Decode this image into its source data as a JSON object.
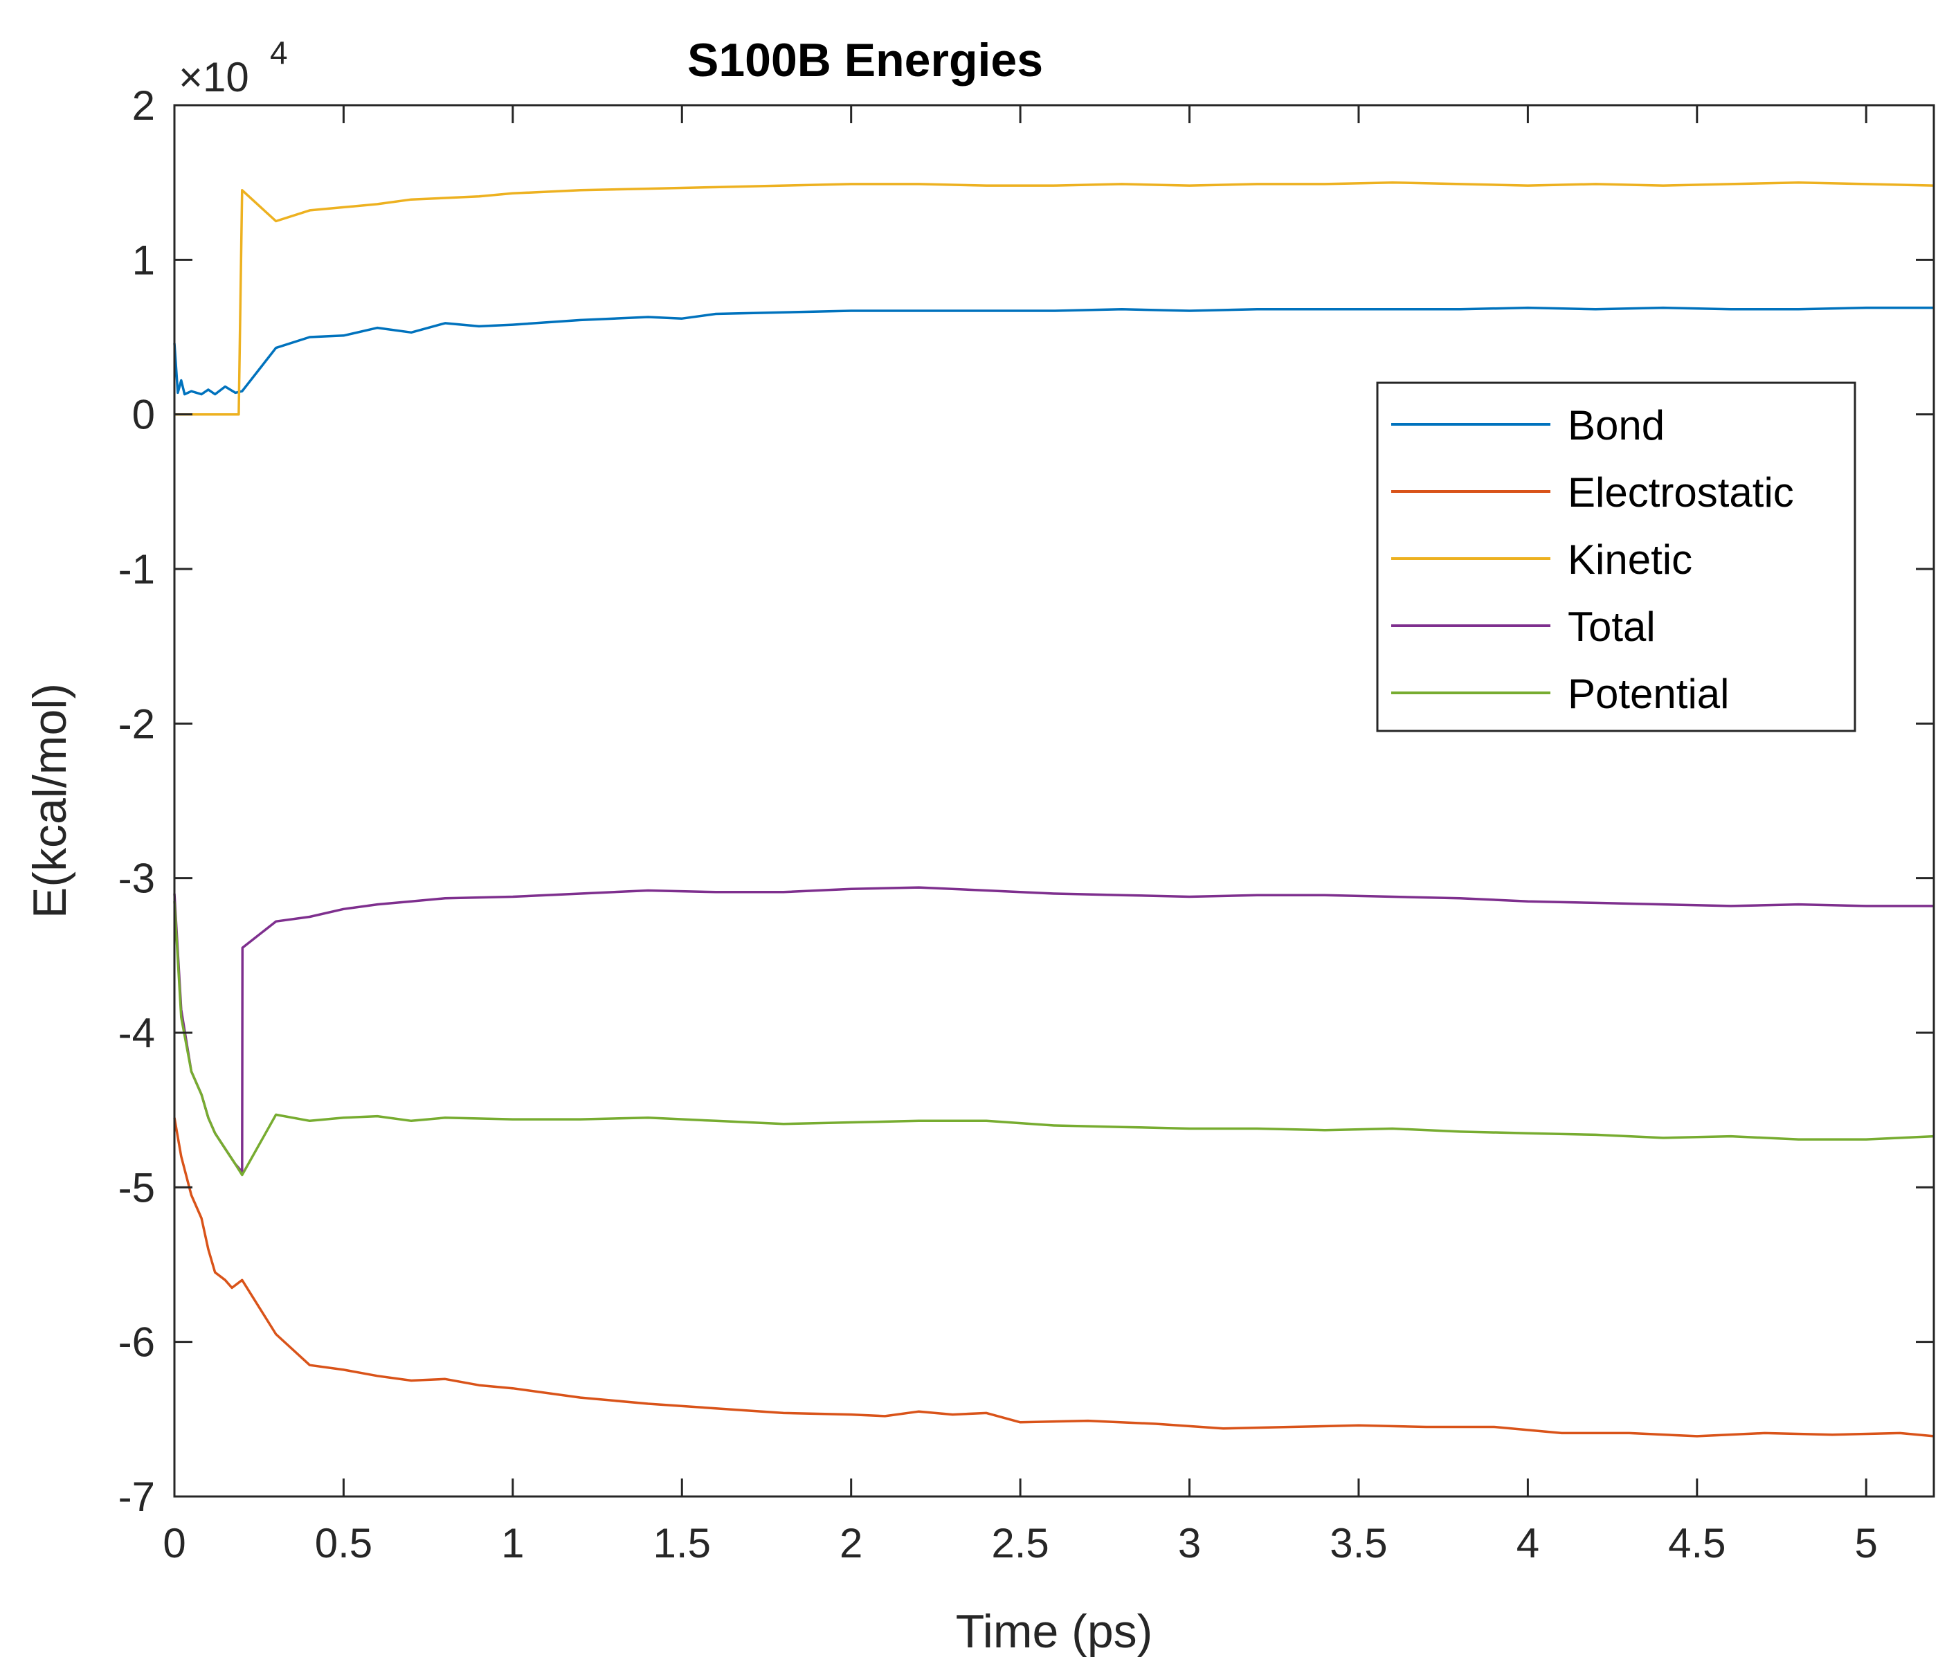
{
  "chart_data": {
    "type": "line",
    "title": "S100B Energies",
    "xlabel": "Time (ps)",
    "ylabel": "E(kcal/mol)",
    "y_multiplier": "×10",
    "y_multiplier_exp": "4",
    "xlim": [
      0,
      5.2
    ],
    "ylim": [
      -7,
      2
    ],
    "xticks": [
      0,
      0.5,
      1,
      1.5,
      2,
      2.5,
      3,
      3.5,
      4,
      4.5,
      5
    ],
    "xtick_labels": [
      "0",
      "0.5",
      "1",
      "1.5",
      "2",
      "2.5",
      "3",
      "3.5",
      "4",
      "4.5",
      "5"
    ],
    "yticks": [
      2,
      1,
      0,
      -1,
      -2,
      -3,
      -4,
      -5,
      -6,
      -7
    ],
    "ytick_labels": [
      "2",
      "1",
      "0",
      "-1",
      "-2",
      "-3",
      "-4",
      "-5",
      "-6",
      "-7"
    ],
    "legend_position": "upper-right",
    "series": [
      {
        "name": "Bond",
        "color": "#0072BD",
        "x": [
          0,
          0.01,
          0.02,
          0.03,
          0.05,
          0.08,
          0.1,
          0.12,
          0.15,
          0.18,
          0.2,
          0.3,
          0.4,
          0.5,
          0.6,
          0.7,
          0.8,
          0.9,
          1.0,
          1.2,
          1.4,
          1.5,
          1.6,
          1.8,
          2.0,
          2.2,
          2.4,
          2.6,
          2.8,
          3.0,
          3.2,
          3.4,
          3.6,
          3.8,
          4.0,
          4.2,
          4.4,
          4.6,
          4.8,
          5.0,
          5.2
        ],
        "values": [
          4600,
          1400,
          2200,
          1300,
          1500,
          1300,
          1600,
          1300,
          1800,
          1400,
          1500,
          4300,
          5000,
          5100,
          5600,
          5300,
          5900,
          5700,
          5800,
          6100,
          6300,
          6200,
          6500,
          6600,
          6700,
          6700,
          6700,
          6700,
          6800,
          6700,
          6800,
          6800,
          6800,
          6800,
          6900,
          6800,
          6900,
          6800,
          6800,
          6900,
          6900
        ]
      },
      {
        "name": "Electrostatic",
        "color": "#D95319",
        "x": [
          0,
          0.02,
          0.05,
          0.08,
          0.1,
          0.12,
          0.15,
          0.17,
          0.2,
          0.3,
          0.4,
          0.5,
          0.6,
          0.7,
          0.8,
          0.9,
          1.0,
          1.2,
          1.4,
          1.6,
          1.8,
          2.0,
          2.1,
          2.2,
          2.3,
          2.4,
          2.5,
          2.7,
          2.9,
          3.1,
          3.3,
          3.5,
          3.7,
          3.9,
          4.1,
          4.3,
          4.5,
          4.7,
          4.9,
          5.1,
          5.2
        ],
        "values": [
          -45500,
          -48000,
          -50500,
          -52000,
          -54000,
          -55500,
          -56000,
          -56500,
          -56000,
          -59500,
          -61500,
          -61800,
          -62200,
          -62500,
          -62400,
          -62800,
          -63000,
          -63600,
          -64000,
          -64300,
          -64600,
          -64700,
          -64800,
          -64500,
          -64700,
          -64600,
          -65200,
          -65100,
          -65300,
          -65600,
          -65500,
          -65400,
          -65500,
          -65500,
          -65900,
          -65900,
          -66100,
          -65900,
          -66000,
          -65900,
          -66100
        ]
      },
      {
        "name": "Kinetic",
        "color": "#EDB120",
        "x": [
          0,
          0.19,
          0.2,
          0.3,
          0.4,
          0.5,
          0.6,
          0.7,
          0.8,
          0.9,
          1.0,
          1.2,
          1.4,
          1.6,
          1.8,
          2.0,
          2.2,
          2.4,
          2.6,
          2.8,
          3.0,
          3.2,
          3.4,
          3.6,
          3.8,
          4.0,
          4.2,
          4.4,
          4.6,
          4.8,
          5.0,
          5.2
        ],
        "values": [
          0,
          0,
          14500,
          12500,
          13200,
          13400,
          13600,
          13900,
          14000,
          14100,
          14300,
          14500,
          14600,
          14700,
          14800,
          14900,
          14900,
          14800,
          14800,
          14900,
          14800,
          14900,
          14900,
          15000,
          14900,
          14800,
          14900,
          14800,
          14900,
          15000,
          14900,
          14800
        ]
      },
      {
        "name": "Total",
        "color": "#7E2F8E",
        "x": [
          0,
          0.02,
          0.05,
          0.08,
          0.1,
          0.12,
          0.15,
          0.18,
          0.2,
          0.201,
          0.3,
          0.4,
          0.5,
          0.6,
          0.7,
          0.8,
          1.0,
          1.2,
          1.4,
          1.6,
          1.8,
          2.0,
          2.2,
          2.4,
          2.6,
          2.8,
          3.0,
          3.2,
          3.4,
          3.6,
          3.8,
          4.0,
          4.2,
          4.4,
          4.6,
          4.8,
          5.0,
          5.2
        ],
        "values": [
          -31000,
          -38500,
          -42500,
          -44000,
          -45500,
          -46500,
          -47500,
          -48500,
          -49000,
          -34500,
          -32800,
          -32500,
          -32000,
          -31700,
          -31500,
          -31300,
          -31200,
          -31000,
          -30800,
          -30900,
          -30900,
          -30700,
          -30600,
          -30800,
          -31000,
          -31100,
          -31200,
          -31100,
          -31100,
          -31200,
          -31300,
          -31500,
          -31600,
          -31700,
          -31800,
          -31700,
          -31800,
          -31800
        ]
      },
      {
        "name": "Potential",
        "color": "#77AC30",
        "x": [
          0,
          0.02,
          0.05,
          0.08,
          0.1,
          0.12,
          0.15,
          0.18,
          0.2,
          0.3,
          0.4,
          0.5,
          0.6,
          0.7,
          0.8,
          1.0,
          1.2,
          1.4,
          1.6,
          1.8,
          2.0,
          2.2,
          2.4,
          2.6,
          2.8,
          3.0,
          3.2,
          3.4,
          3.6,
          3.8,
          4.0,
          4.2,
          4.4,
          4.6,
          4.8,
          5.0,
          5.2
        ],
        "values": [
          -31500,
          -39000,
          -42500,
          -44000,
          -45500,
          -46500,
          -47500,
          -48500,
          -49200,
          -45300,
          -45700,
          -45500,
          -45400,
          -45700,
          -45500,
          -45600,
          -45600,
          -45500,
          -45700,
          -45900,
          -45800,
          -45700,
          -45700,
          -46000,
          -46100,
          -46200,
          -46200,
          -46300,
          -46200,
          -46400,
          -46500,
          -46600,
          -46800,
          -46700,
          -46900,
          -46900,
          -46700
        ]
      }
    ]
  }
}
